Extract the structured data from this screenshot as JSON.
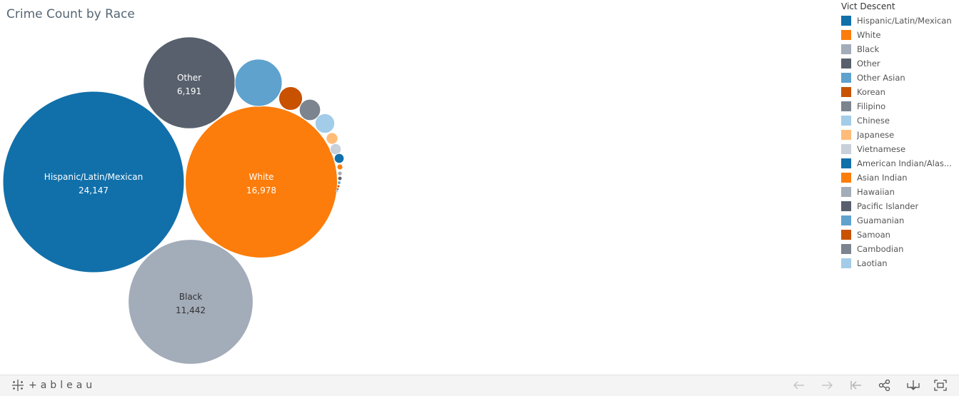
{
  "chart_data": {
    "type": "packed-bubble",
    "title": "Crime Count by Race",
    "legend_title": "Vict Descent",
    "legend_placement": "right",
    "series": [
      {
        "name": "Hispanic/Latin/Mexican",
        "value": 24147,
        "color": "#1170aa",
        "label_shown": true
      },
      {
        "name": "White",
        "value": 16978,
        "color": "#fc7d0b",
        "label_shown": true
      },
      {
        "name": "Black",
        "value": 11442,
        "color": "#a3acb9",
        "label_shown": true
      },
      {
        "name": "Other",
        "value": 6191,
        "color": "#57606c",
        "label_shown": true
      },
      {
        "name": "Other Asian",
        "value": 1640,
        "color": "#5fa2ce",
        "label_shown": false
      },
      {
        "name": "Korean",
        "value": 410,
        "color": "#c85200",
        "label_shown": false
      },
      {
        "name": "Filipino",
        "value": 330,
        "color": "#7b848f",
        "label_shown": false
      },
      {
        "name": "Chinese",
        "value": 280,
        "color": "#a3cce9",
        "label_shown": false
      },
      {
        "name": "Japanese",
        "value": 100,
        "color": "#ffbc79",
        "label_shown": false
      },
      {
        "name": "Vietnamese",
        "value": 90,
        "color": "#c8d0d9",
        "label_shown": false
      },
      {
        "name": "American Indian/Alaskan Native",
        "value": 70,
        "color": "#1170aa",
        "label_shown": false
      },
      {
        "name": "Asian Indian",
        "value": 25,
        "color": "#fc7d0b",
        "label_shown": false
      },
      {
        "name": "Hawaiian",
        "value": 15,
        "color": "#a3acb9",
        "label_shown": false
      },
      {
        "name": "Pacific Islander",
        "value": 10,
        "color": "#57606c",
        "label_shown": false
      },
      {
        "name": "Guamanian",
        "value": 6,
        "color": "#5fa2ce",
        "label_shown": false
      },
      {
        "name": "Samoan",
        "value": 4,
        "color": "#c85200",
        "label_shown": false
      },
      {
        "name": "Cambodian",
        "value": 3,
        "color": "#7b848f",
        "label_shown": false
      },
      {
        "name": "Laotian",
        "value": 2,
        "color": "#a3cce9",
        "label_shown": false
      }
    ]
  },
  "legend": {
    "items": [
      "Hispanic/Latin/Mexican",
      "White",
      "Black",
      "Other",
      "Other Asian",
      "Korean",
      "Filipino",
      "Chinese",
      "Japanese",
      "Vietnamese",
      "American Indian/Alas...",
      "Asian Indian",
      "Hawaiian",
      "Pacific Islander",
      "Guamanian",
      "Samoan",
      "Cambodian",
      "Laotian"
    ]
  },
  "toolbar": {
    "brand": "+ableau",
    "buttons": [
      "undo-icon",
      "redo-icon",
      "revert-icon",
      "share-icon",
      "download-icon",
      "fullscreen-icon"
    ]
  }
}
